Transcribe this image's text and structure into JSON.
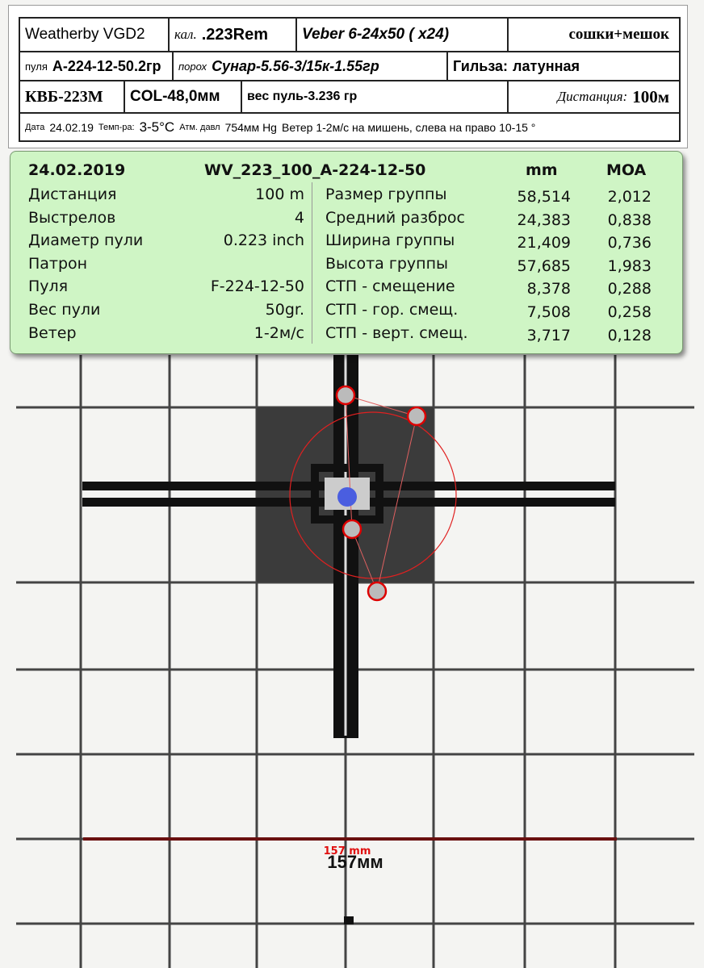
{
  "header": {
    "rows": [
      [
        [
          "Weatherby VGD2"
        ],
        [
          "кал.",
          ".223Rem"
        ],
        [
          "Veber 6-24x50 ( x24)"
        ],
        [
          "сошки+мешок"
        ]
      ],
      [
        [
          "пуля",
          "А-224-12-50.2гр"
        ],
        [
          "порох",
          "Сунар-5.56-3/15к-1.55гр"
        ],
        [
          "Гильза:",
          "латунная"
        ]
      ],
      [
        [
          "КВБ-223М"
        ],
        [
          "COL-48,0мм"
        ],
        [
          "вес пуль-3.236 гр"
        ],
        [
          "Дистанция:",
          "100м"
        ]
      ],
      [
        [
          "Дата",
          "24.02.19",
          "Темп-ра:",
          "3-5°C",
          "Атм. давл",
          "754мм Hg",
          "Ветер 1-2м/с на мишень, слева на право 10-15 °"
        ]
      ]
    ]
  },
  "panel": {
    "head": [
      "24.02.2019",
      "WV_223_100_A-224-12-50",
      "mm",
      "MOA"
    ],
    "left": [
      [
        "Дистанция",
        "100  m"
      ],
      [
        "Выстрелов",
        "4"
      ],
      [
        "Диаметр пули",
        "0.223  inch"
      ],
      [
        "Патрон"
      ],
      [
        "Пуля",
        "F-224-12-50"
      ],
      [
        "Вес пули",
        "50gr."
      ],
      [
        "Ветер",
        "1-2м/с"
      ]
    ],
    "right": [
      [
        "Размер группы",
        "58,514",
        "2,012"
      ],
      [
        "Средний разброс",
        "24,383",
        "0,838"
      ],
      [
        "Ширина группы",
        "21,409",
        "0,736"
      ],
      [
        "Высота группы",
        "57,685",
        "1,983"
      ],
      [
        "СТП - смещение",
        "8,378",
        "0,288"
      ],
      [
        "СТП - гор. смещ.",
        "7,508",
        "0,258"
      ],
      [
        "СТП - верт. смещ.",
        "3,717",
        "0,128"
      ]
    ]
  },
  "target": {
    "measure_label": "157 mm",
    "scale_label": "157мм"
  }
}
